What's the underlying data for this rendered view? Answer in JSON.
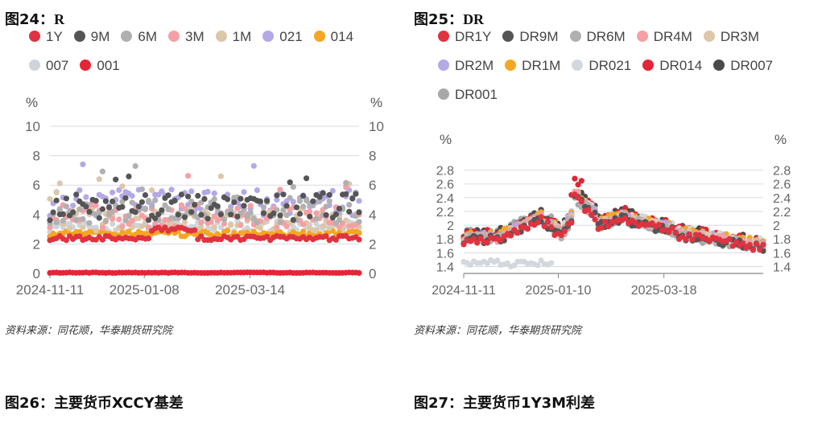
{
  "figures": [
    {
      "number_label": "图24：",
      "code": "R",
      "source": "资料来源：同花顺，华泰期货研究院"
    },
    {
      "number_label": "图25：",
      "code": "DR",
      "source": "资料来源：同花顺，华泰期货研究院"
    },
    {
      "number_label": "图26：",
      "code": "主要货币XCCY基差"
    },
    {
      "number_label": "图27：",
      "code": "主要货币1Y3M利差"
    }
  ],
  "chart_data": [
    {
      "type": "scatter",
      "unit_left": "%",
      "unit_right": "%",
      "ylim": [
        0,
        10
      ],
      "yticks": [
        "0",
        "2",
        "4",
        "6",
        "8",
        "10"
      ],
      "xlim": [
        "2024-11-11",
        "2025-05-20"
      ],
      "xticks": [
        "2024-11-11",
        "2025-01-08",
        "2025-03-14"
      ],
      "grid": true,
      "legend_position": "top",
      "series": [
        {
          "name": "1Y",
          "color": "#e03340",
          "level": 2.4,
          "spread": 0.15
        },
        {
          "name": "9M",
          "color": "#555555",
          "level": 4.5,
          "spread": 0.9
        },
        {
          "name": "6M",
          "color": "#b0b0b0",
          "level": 4.3,
          "spread": 0.9
        },
        {
          "name": "3M",
          "color": "#f4a0a5",
          "level": 3.9,
          "spread": 0.8
        },
        {
          "name": "1M",
          "color": "#dcc7a8",
          "level": 3.7,
          "spread": 0.8
        },
        {
          "name": "021",
          "color": "#b5a8e6",
          "level": 4.8,
          "spread": 0.9
        },
        {
          "name": "014",
          "color": "#f5a623",
          "level": 2.7,
          "spread": 0.2
        },
        {
          "name": "007",
          "color": "#cfd4db",
          "level": 3.2,
          "spread": 0.4
        },
        {
          "name": "001",
          "color": "#e32636",
          "level": 0.05,
          "spread": 0.02
        }
      ]
    },
    {
      "type": "scatter",
      "unit_left": "%",
      "unit_right": "%",
      "ylim": [
        1.3,
        2.9
      ],
      "yticks": [
        "1.4",
        "1.6",
        "1.8",
        "2",
        "2.2",
        "2.4",
        "2.6",
        "2.8"
      ],
      "xlim": [
        "2024-11-11",
        "2025-05-20"
      ],
      "xticks": [
        "2024-11-11",
        "2025-01-10",
        "2025-03-18"
      ],
      "grid": true,
      "legend_position": "top",
      "series": [
        {
          "name": "DR1Y",
          "color": "#e03340"
        },
        {
          "name": "DR9M",
          "color": "#555555"
        },
        {
          "name": "DR6M",
          "color": "#b0b0b0"
        },
        {
          "name": "DR4M",
          "color": "#f4a0a5"
        },
        {
          "name": "DR3M",
          "color": "#dcc7a8"
        },
        {
          "name": "DR2M",
          "color": "#b5a8e6"
        },
        {
          "name": "DR1M",
          "color": "#f5a623"
        },
        {
          "name": "DR021",
          "color": "#d3d8de"
        },
        {
          "name": "DR014",
          "color": "#e32636"
        },
        {
          "name": "DR007",
          "color": "#4a4a4a"
        },
        {
          "name": "DR001",
          "color": "#a8a8a8"
        }
      ]
    }
  ]
}
